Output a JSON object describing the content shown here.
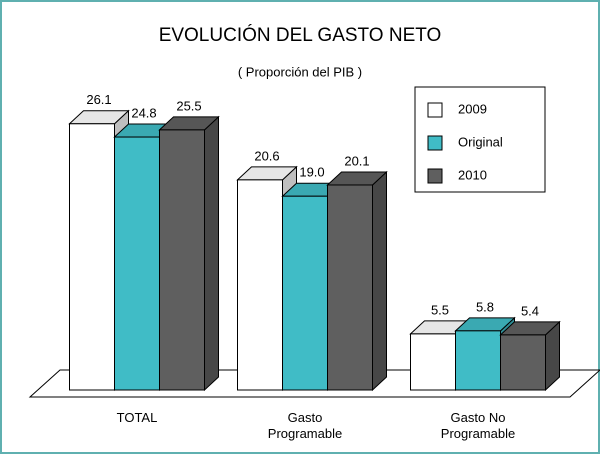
{
  "chart_data": {
    "type": "bar3d",
    "title": "EVOLUCIÓN DEL GASTO NETO",
    "subtitle": "( Proporción del PIB )",
    "categories": [
      "TOTAL",
      "Gasto Programable",
      "Gasto No Programable"
    ],
    "series": [
      {
        "name": "2009",
        "color": "#ffffff",
        "values": [
          26.1,
          20.6,
          5.5
        ],
        "value_labels": [
          "26.1",
          "20.6",
          "5.5"
        ]
      },
      {
        "name": "Original",
        "color": "#40bcc6",
        "values": [
          24.8,
          19.0,
          5.8
        ],
        "value_labels": [
          "24.8",
          "19.0",
          "5.8"
        ]
      },
      {
        "name": "2010",
        "color": "#5f5f5f",
        "values": [
          25.5,
          20.1,
          5.4
        ],
        "value_labels": [
          "25.5",
          "20.1",
          "5.4"
        ]
      }
    ],
    "legend": "top-right"
  }
}
